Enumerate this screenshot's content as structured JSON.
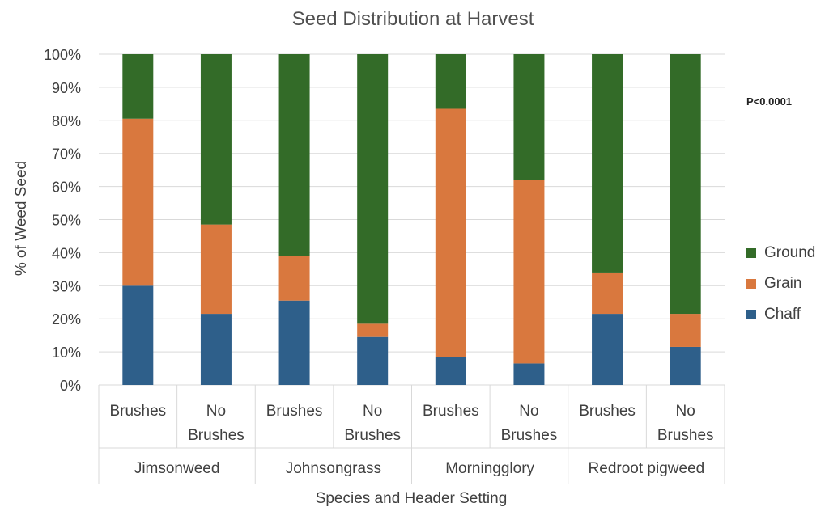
{
  "chart_data": {
    "type": "bar",
    "stacked": true,
    "title": "Seed Distribution at Harvest",
    "xlabel": "Species and Header Setting",
    "ylabel": "% of Weed Seed",
    "ylim": [
      0,
      100
    ],
    "yticks": [
      "0%",
      "10%",
      "20%",
      "30%",
      "40%",
      "50%",
      "60%",
      "70%",
      "80%",
      "90%",
      "100%"
    ],
    "groups": [
      "Jimsonweed",
      "Johnsongrass",
      "Morningglory",
      "Redroot pigweed"
    ],
    "categories": [
      [
        "Brushes"
      ],
      [
        "No",
        "Brushes"
      ],
      [
        "Brushes"
      ],
      [
        "No",
        "Brushes"
      ],
      [
        "Brushes"
      ],
      [
        "No",
        "Brushes"
      ],
      [
        "Brushes"
      ],
      [
        "No",
        "Brushes"
      ]
    ],
    "series": [
      {
        "name": "Chaff",
        "color": "#2e5f8a",
        "values": [
          30,
          21.5,
          25.5,
          14.5,
          8.5,
          6.5,
          21.5,
          11.5
        ]
      },
      {
        "name": "Grain",
        "color": "#d9783e",
        "values": [
          50.5,
          27,
          13.5,
          4,
          75,
          55.5,
          12.5,
          10
        ]
      },
      {
        "name": "Ground",
        "color": "#336b28",
        "values": [
          19.5,
          51.5,
          61,
          81.5,
          16.5,
          38,
          66,
          78.5
        ]
      }
    ],
    "legend_position": "right",
    "legend_order": [
      "Ground",
      "Grain",
      "Chaff"
    ],
    "annotation": "P<0.0001",
    "grid": true
  }
}
